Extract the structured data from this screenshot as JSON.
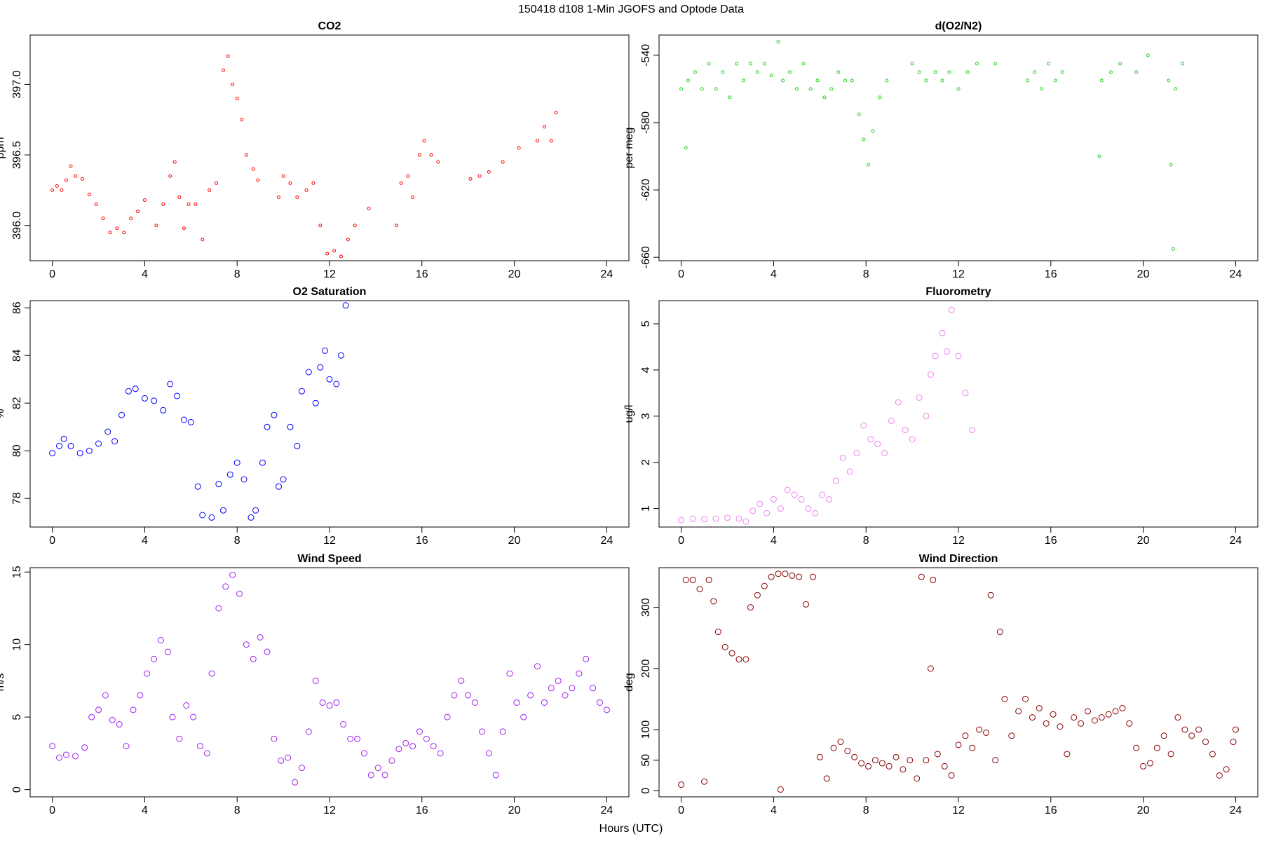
{
  "title": "150418   d108   1-Min  JGOFS and Optode Data",
  "xlabel": "Hours (UTC)",
  "chart_data": [
    {
      "type": "scatter",
      "title": "CO2",
      "ylabel": "ppm",
      "color": "#ff0000",
      "xlim": [
        -0.96,
        24.96
      ],
      "xticks": [
        0,
        4,
        8,
        12,
        16,
        20,
        24
      ],
      "ylim": [
        395.75,
        397.35
      ],
      "yticks": [
        {
          "value": 396,
          "label": "396.0"
        },
        396.5,
        {
          "value": 397,
          "label": "397.0"
        }
      ],
      "x": [
        0,
        0.2,
        0.4,
        0.6,
        0.8,
        1.0,
        1.3,
        1.6,
        1.9,
        2.2,
        2.5,
        2.8,
        3.1,
        3.4,
        3.7,
        4.0,
        4.5,
        4.8,
        5.1,
        5.3,
        5.5,
        5.7,
        5.9,
        6.2,
        6.5,
        6.8,
        7.1,
        7.4,
        7.6,
        7.8,
        8.0,
        8.2,
        8.4,
        8.7,
        8.9,
        9.8,
        10.0,
        10.3,
        10.6,
        11.0,
        11.3,
        11.6,
        11.9,
        12.2,
        12.5,
        12.8,
        13.1,
        13.7,
        14.9,
        15.1,
        15.4,
        15.6,
        15.9,
        16.1,
        16.4,
        16.7,
        18.1,
        18.5,
        18.9,
        19.5,
        20.2,
        21.0,
        21.3,
        21.6,
        21.8
      ],
      "values": [
        396.25,
        396.28,
        396.25,
        396.32,
        396.42,
        396.35,
        396.33,
        396.22,
        396.15,
        396.05,
        395.95,
        395.98,
        395.95,
        396.05,
        396.1,
        396.18,
        396.0,
        396.15,
        396.35,
        396.45,
        396.2,
        395.98,
        396.15,
        396.15,
        395.9,
        396.25,
        396.3,
        397.1,
        397.2,
        397.0,
        396.9,
        396.75,
        396.5,
        396.4,
        396.32,
        396.2,
        396.35,
        396.3,
        396.2,
        396.25,
        396.3,
        396.0,
        395.8,
        395.82,
        395.78,
        395.9,
        396.0,
        396.12,
        396.0,
        396.3,
        396.35,
        396.2,
        396.5,
        396.6,
        396.5,
        396.45,
        396.33,
        396.35,
        396.38,
        396.45,
        396.55,
        396.6,
        396.7,
        396.6,
        396.8
      ]
    },
    {
      "type": "scatter",
      "title": "d(O2/N2)",
      "ylabel": "per meg",
      "color": "#22cc22",
      "xlim": [
        -0.96,
        24.96
      ],
      "xticks": [
        0,
        4,
        8,
        12,
        16,
        20,
        24
      ],
      "ylim": [
        -662,
        -528
      ],
      "yticks": [
        -540,
        -580,
        -620,
        -660
      ],
      "x": [
        0,
        0.2,
        0.3,
        0.6,
        0.9,
        1.2,
        1.5,
        1.8,
        2.1,
        2.4,
        2.7,
        3.0,
        3.3,
        3.6,
        3.9,
        4.2,
        4.4,
        4.7,
        5.0,
        5.3,
        5.6,
        5.9,
        6.2,
        6.5,
        6.8,
        7.1,
        7.4,
        7.7,
        7.9,
        8.1,
        8.3,
        8.6,
        8.9,
        10.0,
        10.3,
        10.6,
        11.0,
        11.3,
        11.6,
        12.0,
        12.4,
        12.8,
        13.6,
        15.0,
        15.3,
        15.6,
        15.9,
        16.2,
        16.5,
        18.1,
        18.2,
        18.6,
        19.0,
        19.7,
        20.2,
        21.1,
        21.2,
        21.3,
        21.4,
        21.7
      ],
      "values": [
        -560,
        -595,
        -555,
        -550,
        -560,
        -545,
        -560,
        -550,
        -565,
        -545,
        -555,
        -545,
        -550,
        -545,
        -552,
        -532,
        -555,
        -550,
        -560,
        -545,
        -560,
        -555,
        -565,
        -560,
        -550,
        -555,
        -555,
        -575,
        -590,
        -605,
        -585,
        -565,
        -555,
        -545,
        -550,
        -555,
        -550,
        -555,
        -550,
        -560,
        -550,
        -545,
        -545,
        -555,
        -550,
        -560,
        -545,
        -555,
        -550,
        -600,
        -555,
        -550,
        -545,
        -550,
        -540,
        -555,
        -605,
        -655,
        -560,
        -545
      ]
    },
    {
      "type": "scatter",
      "title": "O2 Saturation",
      "ylabel": "%",
      "color": "#0000ff",
      "xlim": [
        -0.96,
        24.96
      ],
      "xticks": [
        0,
        4,
        8,
        12,
        16,
        20,
        24
      ],
      "ylim": [
        76.8,
        86.3
      ],
      "yticks": [
        78,
        80,
        82,
        84,
        86
      ],
      "x": [
        0,
        0.3,
        0.5,
        0.8,
        1.2,
        1.6,
        2.0,
        2.4,
        2.7,
        3.0,
        3.3,
        3.6,
        4.0,
        4.4,
        4.8,
        5.1,
        5.4,
        5.7,
        6.0,
        6.3,
        6.5,
        6.9,
        7.2,
        7.4,
        7.7,
        8.0,
        8.3,
        8.6,
        8.8,
        9.1,
        9.3,
        9.6,
        9.8,
        10.0,
        10.3,
        10.6,
        10.8,
        11.1,
        11.4,
        11.6,
        11.8,
        12.0,
        12.3,
        12.5,
        12.7
      ],
      "values": [
        79.9,
        80.2,
        80.5,
        80.2,
        79.9,
        80.0,
        80.3,
        80.8,
        80.4,
        81.5,
        82.5,
        82.6,
        82.2,
        82.1,
        81.7,
        82.8,
        82.3,
        81.3,
        81.2,
        78.5,
        77.3,
        77.2,
        78.6,
        77.5,
        79.0,
        79.5,
        78.8,
        77.2,
        77.5,
        79.5,
        81.0,
        81.5,
        78.5,
        78.8,
        81.0,
        80.2,
        82.5,
        83.3,
        82.0,
        83.5,
        84.2,
        83.0,
        82.8,
        84.0,
        86.1
      ]
    },
    {
      "type": "scatter",
      "title": "Fluorometry",
      "ylabel": "ug/l",
      "color": "#ee82ee",
      "xlim": [
        -0.96,
        24.96
      ],
      "xticks": [
        0,
        4,
        8,
        12,
        16,
        20,
        24
      ],
      "ylim": [
        0.6,
        5.5
      ],
      "yticks": [
        1,
        2,
        3,
        4,
        5
      ],
      "x": [
        0,
        0.5,
        1.0,
        1.5,
        2.0,
        2.5,
        2.8,
        3.1,
        3.4,
        3.7,
        4.0,
        4.3,
        4.6,
        4.9,
        5.2,
        5.5,
        5.8,
        6.1,
        6.4,
        6.7,
        7.0,
        7.3,
        7.6,
        7.9,
        8.2,
        8.5,
        8.8,
        9.1,
        9.4,
        9.7,
        10.0,
        10.3,
        10.6,
        10.8,
        11.0,
        11.3,
        11.5,
        11.7,
        12.0,
        12.3,
        12.6
      ],
      "values": [
        0.75,
        0.78,
        0.77,
        0.78,
        0.8,
        0.78,
        0.72,
        0.95,
        1.1,
        0.9,
        1.2,
        1.0,
        1.4,
        1.3,
        1.2,
        1.0,
        0.9,
        1.3,
        1.2,
        1.6,
        2.1,
        1.8,
        2.2,
        2.8,
        2.5,
        2.4,
        2.2,
        2.9,
        3.3,
        2.7,
        2.5,
        3.4,
        3.0,
        3.9,
        4.3,
        4.8,
        4.4,
        5.3,
        4.3,
        3.5,
        2.7
      ]
    },
    {
      "type": "scatter",
      "title": "Wind Speed",
      "ylabel": "m/s",
      "color": "#a020f0",
      "xlim": [
        -0.96,
        24.96
      ],
      "xticks": [
        0,
        4,
        8,
        12,
        16,
        20,
        24
      ],
      "ylim": [
        -0.5,
        15.3
      ],
      "yticks": [
        0,
        5,
        10,
        15
      ],
      "x": [
        0,
        0.3,
        0.6,
        1.0,
        1.4,
        1.7,
        2.0,
        2.3,
        2.6,
        2.9,
        3.2,
        3.5,
        3.8,
        4.1,
        4.4,
        4.7,
        5.0,
        5.2,
        5.5,
        5.8,
        6.1,
        6.4,
        6.7,
        6.9,
        7.2,
        7.5,
        7.8,
        8.1,
        8.4,
        8.7,
        9.0,
        9.3,
        9.6,
        9.9,
        10.2,
        10.5,
        10.8,
        11.1,
        11.4,
        11.7,
        12.0,
        12.3,
        12.6,
        12.9,
        13.2,
        13.5,
        13.8,
        14.1,
        14.4,
        14.7,
        15.0,
        15.3,
        15.6,
        15.9,
        16.2,
        16.5,
        16.8,
        17.1,
        17.4,
        17.7,
        18.0,
        18.3,
        18.6,
        18.9,
        19.2,
        19.5,
        19.8,
        20.1,
        20.4,
        20.7,
        21.0,
        21.3,
        21.6,
        21.9,
        22.2,
        22.5,
        22.8,
        23.1,
        23.4,
        23.7,
        24.0
      ],
      "values": [
        3.0,
        2.2,
        2.4,
        2.3,
        2.9,
        5.0,
        5.5,
        6.5,
        4.8,
        4.5,
        3.0,
        5.5,
        6.5,
        8.0,
        9.0,
        10.3,
        9.5,
        5.0,
        3.5,
        5.8,
        5.0,
        3.0,
        2.5,
        8.0,
        12.5,
        14.0,
        14.8,
        13.5,
        10.0,
        9.0,
        10.5,
        9.5,
        3.5,
        2.0,
        2.2,
        0.5,
        1.5,
        4.0,
        7.5,
        6.0,
        5.8,
        6.0,
        4.5,
        3.5,
        3.5,
        2.5,
        1.0,
        1.5,
        1.0,
        2.0,
        2.8,
        3.2,
        3.0,
        4.0,
        3.5,
        3.0,
        2.5,
        5.0,
        6.5,
        7.5,
        6.5,
        6.0,
        4.0,
        2.5,
        1.0,
        4.0,
        8.0,
        6.0,
        5.0,
        6.5,
        8.5,
        6.0,
        7.0,
        7.5,
        6.5,
        7.0,
        8.0,
        9.0,
        7.0,
        6.0,
        5.5
      ]
    },
    {
      "type": "scatter",
      "title": "Wind Direction",
      "ylabel": "deg",
      "color": "#8b0000",
      "xlim": [
        -0.96,
        24.96
      ],
      "xticks": [
        0,
        4,
        8,
        12,
        16,
        20,
        24
      ],
      "ylim": [
        -10,
        365
      ],
      "yticks": [
        0,
        50,
        100,
        200,
        300
      ],
      "x": [
        0,
        0.2,
        0.5,
        0.8,
        1.0,
        1.2,
        1.4,
        1.6,
        1.9,
        2.2,
        2.5,
        2.8,
        3.0,
        3.3,
        3.6,
        3.9,
        4.2,
        4.3,
        4.5,
        4.8,
        5.1,
        5.4,
        5.7,
        6.0,
        6.3,
        6.6,
        6.9,
        7.2,
        7.5,
        7.8,
        8.1,
        8.4,
        8.7,
        9.0,
        9.3,
        9.6,
        9.9,
        10.2,
        10.4,
        10.6,
        10.8,
        10.9,
        11.1,
        11.4,
        11.7,
        12.0,
        12.3,
        12.6,
        12.9,
        13.2,
        13.4,
        13.6,
        13.8,
        14.0,
        14.3,
        14.6,
        14.9,
        15.2,
        15.5,
        15.8,
        16.1,
        16.4,
        16.7,
        17.0,
        17.3,
        17.6,
        17.9,
        18.2,
        18.5,
        18.8,
        19.1,
        19.4,
        19.7,
        20.0,
        20.3,
        20.6,
        20.9,
        21.2,
        21.5,
        21.8,
        22.1,
        22.4,
        22.7,
        23.0,
        23.3,
        23.6,
        23.9,
        24.0
      ],
      "values": [
        10,
        345,
        345,
        330,
        15,
        345,
        310,
        260,
        235,
        225,
        215,
        215,
        300,
        320,
        335,
        350,
        355,
        2,
        355,
        352,
        350,
        305,
        350,
        55,
        20,
        70,
        80,
        65,
        55,
        45,
        40,
        50,
        45,
        40,
        55,
        35,
        50,
        20,
        350,
        50,
        200,
        345,
        60,
        40,
        25,
        75,
        90,
        70,
        100,
        95,
        320,
        50,
        260,
        150,
        90,
        130,
        150,
        120,
        135,
        110,
        125,
        105,
        60,
        120,
        110,
        130,
        115,
        120,
        125,
        130,
        135,
        110,
        70,
        40,
        45,
        70,
        90,
        60,
        120,
        100,
        90,
        100,
        80,
        60,
        25,
        35,
        80,
        100
      ]
    }
  ]
}
